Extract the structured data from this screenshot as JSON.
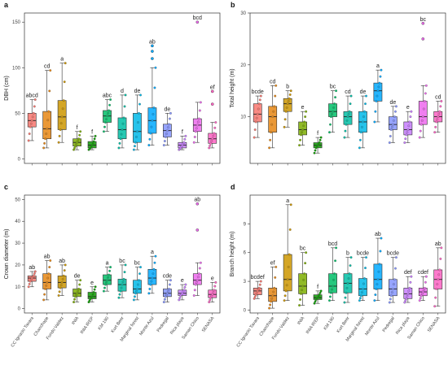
{
  "categories": [
    "CC Ignacio Tavara",
    "Chanchape",
    "Fundo Valdez",
    "INIA",
    "INIA IREP",
    "KM 190",
    "Kurt Beer",
    "Marginal forest",
    "Monte Azul",
    "Pedregal",
    "Rica playa",
    "Saman Chico",
    "SENASA"
  ],
  "colors": [
    "#f8766d",
    "#e68613",
    "#cd9600",
    "#7cae00",
    "#0c9e00",
    "#00be67",
    "#00bfa6",
    "#00b8e7",
    "#00a9ff",
    "#8494ff",
    "#c77cff",
    "#ed68ed",
    "#ff61c3"
  ],
  "chart_data": [
    {
      "type": "box",
      "panel": "a",
      "ylabel": "DBH (cm)",
      "ylim": [
        -5,
        160
      ],
      "yticks": [
        0,
        50,
        100,
        150
      ],
      "letters": [
        "abcd",
        "cd",
        "a",
        "f",
        "f",
        "abc",
        "d",
        "de",
        "ab",
        "de",
        "f",
        "bcd",
        "ef"
      ],
      "boxes": [
        {
          "min": 20,
          "q1": 35,
          "median": 42,
          "q3": 50,
          "max": 65,
          "outliers": []
        },
        {
          "min": 12,
          "q1": 22,
          "median": 33,
          "q3": 52,
          "max": 97,
          "outliers": []
        },
        {
          "min": 18,
          "q1": 32,
          "median": 46,
          "q3": 64,
          "max": 105,
          "outliers": []
        },
        {
          "min": 10,
          "q1": 14,
          "median": 18,
          "q3": 22,
          "max": 30,
          "outliers": []
        },
        {
          "min": 10,
          "q1": 12,
          "median": 15,
          "q3": 19,
          "max": 25,
          "outliers": []
        },
        {
          "min": 30,
          "q1": 40,
          "median": 47,
          "q3": 53,
          "max": 65,
          "outliers": []
        },
        {
          "min": 12,
          "q1": 22,
          "median": 32,
          "q3": 45,
          "max": 70,
          "outliers": []
        },
        {
          "min": 10,
          "q1": 18,
          "median": 30,
          "q3": 50,
          "max": 70,
          "outliers": []
        },
        {
          "min": 15,
          "q1": 28,
          "median": 42,
          "q3": 56,
          "max": 100,
          "outliers": [
            110,
            118,
            124
          ]
        },
        {
          "min": 15,
          "q1": 24,
          "median": 31,
          "q3": 38,
          "max": 50,
          "outliers": []
        },
        {
          "min": 10,
          "q1": 12,
          "median": 15,
          "q3": 18,
          "max": 25,
          "outliers": []
        },
        {
          "min": 18,
          "q1": 30,
          "median": 37,
          "q3": 44,
          "max": 62,
          "outliers": [
            150
          ]
        },
        {
          "min": 12,
          "q1": 17,
          "median": 22,
          "q3": 28,
          "max": 40,
          "outliers": [
            60,
            74
          ]
        }
      ]
    },
    {
      "type": "box",
      "panel": "b",
      "ylabel": "Total height (m)",
      "ylim": [
        1,
        30
      ],
      "yticks": [
        10,
        20,
        30
      ],
      "letters": [
        "bcde",
        "cd",
        "b",
        "e",
        "f",
        "bc",
        "cd",
        "de",
        "a",
        "de",
        "e",
        "bc",
        "cd"
      ],
      "boxes": [
        {
          "min": 6,
          "q1": 9,
          "median": 10.5,
          "q3": 12.5,
          "max": 14,
          "outliers": []
        },
        {
          "min": 4,
          "q1": 7,
          "median": 10,
          "q3": 12,
          "max": 16,
          "outliers": []
        },
        {
          "min": 8,
          "q1": 11,
          "median": 12.5,
          "q3": 13.5,
          "max": 15,
          "outliers": []
        },
        {
          "min": 4.5,
          "q1": 6.5,
          "median": 7.5,
          "q3": 9,
          "max": 11,
          "outliers": []
        },
        {
          "min": 3,
          "q1": 4,
          "median": 4.5,
          "q3": 5,
          "max": 6,
          "outliers": []
        },
        {
          "min": 7,
          "q1": 10,
          "median": 11,
          "q3": 12.5,
          "max": 15,
          "outliers": []
        },
        {
          "min": 6,
          "q1": 8.5,
          "median": 10,
          "q3": 11,
          "max": 14,
          "outliers": []
        },
        {
          "min": 4,
          "q1": 7,
          "median": 9,
          "q3": 11,
          "max": 14,
          "outliers": []
        },
        {
          "min": 9,
          "q1": 13,
          "median": 15,
          "q3": 16.5,
          "max": 19,
          "outliers": []
        },
        {
          "min": 5,
          "q1": 7.5,
          "median": 8.5,
          "q3": 10,
          "max": 12,
          "outliers": []
        },
        {
          "min": 5,
          "q1": 6.5,
          "median": 7.5,
          "q3": 9,
          "max": 11,
          "outliers": []
        },
        {
          "min": 6,
          "q1": 8.5,
          "median": 10,
          "q3": 13,
          "max": 16,
          "outliers": [
            25,
            28
          ]
        },
        {
          "min": 7,
          "q1": 9,
          "median": 10,
          "q3": 11,
          "max": 13,
          "outliers": []
        }
      ]
    },
    {
      "type": "box",
      "panel": "c",
      "ylabel": "Crown diameter (m)",
      "ylim": [
        -2,
        52
      ],
      "yticks": [
        0,
        10,
        20,
        30,
        40,
        50
      ],
      "letters": [
        "ab",
        "ab",
        "ab",
        "de",
        "e",
        "a",
        "bc",
        "bc",
        "a",
        "cde",
        "e",
        "ab",
        "e"
      ],
      "boxes": [
        {
          "min": 10,
          "q1": 12.5,
          "median": 14,
          "q3": 15,
          "max": 17,
          "outliers": []
        },
        {
          "min": 4,
          "q1": 9,
          "median": 12,
          "q3": 16,
          "max": 22,
          "outliers": []
        },
        {
          "min": 6,
          "q1": 9.5,
          "median": 12,
          "q3": 15,
          "max": 20,
          "outliers": []
        },
        {
          "min": 3,
          "q1": 5.5,
          "median": 7,
          "q3": 9,
          "max": 13,
          "outliers": []
        },
        {
          "min": 3,
          "q1": 4.5,
          "median": 5.5,
          "q3": 7.5,
          "max": 10,
          "outliers": []
        },
        {
          "min": 8,
          "q1": 11,
          "median": 13,
          "q3": 15.5,
          "max": 19,
          "outliers": []
        },
        {
          "min": 5,
          "q1": 8,
          "median": 11,
          "q3": 13.5,
          "max": 20,
          "outliers": []
        },
        {
          "min": 4,
          "q1": 7,
          "median": 9,
          "q3": 13,
          "max": 19,
          "outliers": []
        },
        {
          "min": 7,
          "q1": 11,
          "median": 14,
          "q3": 18,
          "max": 24,
          "outliers": []
        },
        {
          "min": 3,
          "q1": 5.5,
          "median": 7,
          "q3": 9,
          "max": 13,
          "outliers": []
        },
        {
          "min": 4,
          "q1": 6,
          "median": 7,
          "q3": 8.5,
          "max": 11,
          "outliers": []
        },
        {
          "min": 6,
          "q1": 11,
          "median": 13,
          "q3": 16,
          "max": 21,
          "outliers": [
            36,
            48
          ]
        },
        {
          "min": 3,
          "q1": 5,
          "median": 6.5,
          "q3": 8.5,
          "max": 12,
          "outliers": []
        }
      ]
    },
    {
      "type": "box",
      "panel": "d",
      "ylabel": "Branch height (m)",
      "ylim": [
        -0.3,
        12
      ],
      "yticks": [
        0,
        3,
        6,
        9
      ],
      "letters": [
        "bcdef",
        "ef",
        "a",
        "bc",
        "f",
        "bcd",
        "b",
        "bcde",
        "ab",
        "bcde",
        "def",
        "cdef",
        "ab"
      ],
      "boxes": [
        {
          "min": 1.2,
          "q1": 1.6,
          "median": 2,
          "q3": 2.3,
          "max": 3,
          "outliers": []
        },
        {
          "min": 0.2,
          "q1": 0.9,
          "median": 1.5,
          "q3": 2.3,
          "max": 4.5,
          "outliers": []
        },
        {
          "min": 1,
          "q1": 2,
          "median": 3.2,
          "q3": 5.8,
          "max": 11,
          "outliers": []
        },
        {
          "min": 0.5,
          "q1": 1.7,
          "median": 2.5,
          "q3": 3.8,
          "max": 6,
          "outliers": []
        },
        {
          "min": 0.7,
          "q1": 1.1,
          "median": 1.3,
          "q3": 1.6,
          "max": 2,
          "outliers": []
        },
        {
          "min": 1,
          "q1": 1.8,
          "median": 2.5,
          "q3": 3.8,
          "max": 6.5,
          "outliers": []
        },
        {
          "min": 0.8,
          "q1": 1.8,
          "median": 2.8,
          "q3": 3.8,
          "max": 5.5,
          "outliers": []
        },
        {
          "min": 1,
          "q1": 1.5,
          "median": 2.2,
          "q3": 3.3,
          "max": 5.5,
          "outliers": []
        },
        {
          "min": 1,
          "q1": 2.2,
          "median": 3.2,
          "q3": 4.8,
          "max": 7.5,
          "outliers": []
        },
        {
          "min": 0.8,
          "q1": 1.5,
          "median": 2.2,
          "q3": 3.2,
          "max": 5.5,
          "outliers": []
        },
        {
          "min": 0.8,
          "q1": 1.2,
          "median": 1.7,
          "q3": 2.3,
          "max": 3.5,
          "outliers": []
        },
        {
          "min": 1,
          "q1": 1.5,
          "median": 1.9,
          "q3": 2.3,
          "max": 3.5,
          "outliers": []
        },
        {
          "min": 0.4,
          "q1": 2.2,
          "median": 3.2,
          "q3": 4.2,
          "max": 6.5,
          "outliers": []
        }
      ]
    }
  ]
}
